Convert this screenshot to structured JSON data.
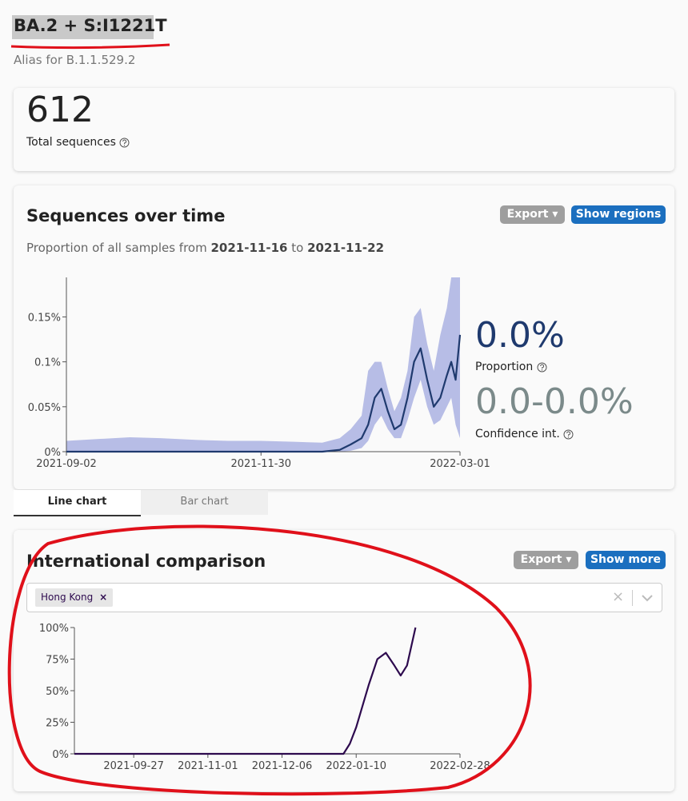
{
  "header": {
    "title": "BA.2 + S:I1221T",
    "alias": "Alias for B.1.1.529.2"
  },
  "total": {
    "value": 612,
    "label": "Total sequences"
  },
  "sequences_over_time": {
    "title": "Sequences over time",
    "buttons": [
      "Export",
      "Show regions"
    ],
    "subtitle": {
      "prefix": "Proportion of all samples from",
      "start": "2021-11-16",
      "middle": "to",
      "end": "2021-11-22"
    },
    "proportion": {
      "value": "0.0%",
      "label": "Proportion"
    },
    "confidence": {
      "value": "0.0-0.0%",
      "label": "Confidence int."
    },
    "tabs": [
      "Line chart",
      "Bar chart"
    ],
    "chart": {
      "type": "line",
      "color": "#1f3a6e",
      "band_color": "#aab2e2",
      "x": [
        "2021-09-02",
        "2021-09-16",
        "2021-10-01",
        "2021-10-15",
        "2021-11-01",
        "2021-11-15",
        "2021-11-30",
        "2021-12-15",
        "2021-12-28",
        "2022-01-05",
        "2022-01-10",
        "2022-01-15",
        "2022-01-18",
        "2022-01-21",
        "2022-01-24",
        "2022-01-27",
        "2022-01-30",
        "2022-02-02",
        "2022-02-05",
        "2022-02-08",
        "2022-02-11",
        "2022-02-14",
        "2022-02-17",
        "2022-02-20",
        "2022-02-23",
        "2022-02-25",
        "2022-02-27",
        "2022-03-01"
      ],
      "values": [
        0,
        0,
        0,
        0,
        0,
        0,
        0,
        0,
        0,
        0.002,
        0.008,
        0.015,
        0.03,
        0.06,
        0.07,
        0.045,
        0.025,
        0.03,
        0.06,
        0.1,
        0.115,
        0.08,
        0.05,
        0.06,
        0.085,
        0.1,
        0.08,
        0.13
      ],
      "ci_lower": [
        0,
        0,
        0,
        0,
        0,
        0,
        0,
        0,
        0,
        0,
        0.001,
        0.004,
        0.012,
        0.03,
        0.04,
        0.025,
        0.015,
        0.015,
        0.035,
        0.06,
        0.08,
        0.05,
        0.03,
        0.035,
        0.05,
        0.06,
        0.03,
        0.015
      ],
      "ci_upper": [
        0.012,
        0.014,
        0.016,
        0.015,
        0.013,
        0.012,
        0.012,
        0.011,
        0.01,
        0.015,
        0.025,
        0.04,
        0.09,
        0.1,
        0.1,
        0.07,
        0.045,
        0.06,
        0.09,
        0.15,
        0.16,
        0.12,
        0.09,
        0.13,
        0.16,
        0.194,
        0.194,
        0.194
      ],
      "xlim": [
        "2021-09-02",
        "2022-03-01"
      ],
      "xticks": [
        "2021-09-02",
        "2021-11-30",
        "2022-03-01"
      ],
      "ylim": [
        0,
        0.194
      ],
      "yticks": [
        {
          "value": 0,
          "label": "0%"
        },
        {
          "value": 0.05,
          "label": "0.05%"
        },
        {
          "value": 0.1,
          "label": "0.1%"
        },
        {
          "value": 0.15,
          "label": "0.15%"
        }
      ]
    }
  },
  "international_comparison": {
    "title": "International comparison",
    "buttons": [
      "Export",
      "Show more"
    ],
    "selected": [
      "Hong Kong"
    ],
    "chart": {
      "type": "line",
      "color": "#2d0a4e",
      "x": [
        "2021-08-30",
        "2021-10-01",
        "2021-11-01",
        "2021-12-01",
        "2022-01-04",
        "2022-01-07",
        "2022-01-10",
        "2022-01-13",
        "2022-01-16",
        "2022-01-20",
        "2022-01-24",
        "2022-01-28",
        "2022-01-31",
        "2022-02-03",
        "2022-02-07"
      ],
      "values": [
        0,
        0,
        0,
        0,
        0,
        8,
        21,
        38,
        55,
        75,
        80,
        70,
        62,
        70,
        100
      ],
      "xlim": [
        "2021-08-30",
        "2022-02-28"
      ],
      "xticks": [
        "2021-09-27",
        "2021-11-01",
        "2021-12-06",
        "2022-01-10",
        "2022-02-28"
      ],
      "ylim": [
        0,
        100
      ],
      "yticks": [
        {
          "value": 0,
          "label": "0%"
        },
        {
          "value": 25,
          "label": "25%"
        },
        {
          "value": 50,
          "label": "50%"
        },
        {
          "value": 75,
          "label": "75%"
        },
        {
          "value": 100,
          "label": "100%"
        }
      ]
    }
  }
}
